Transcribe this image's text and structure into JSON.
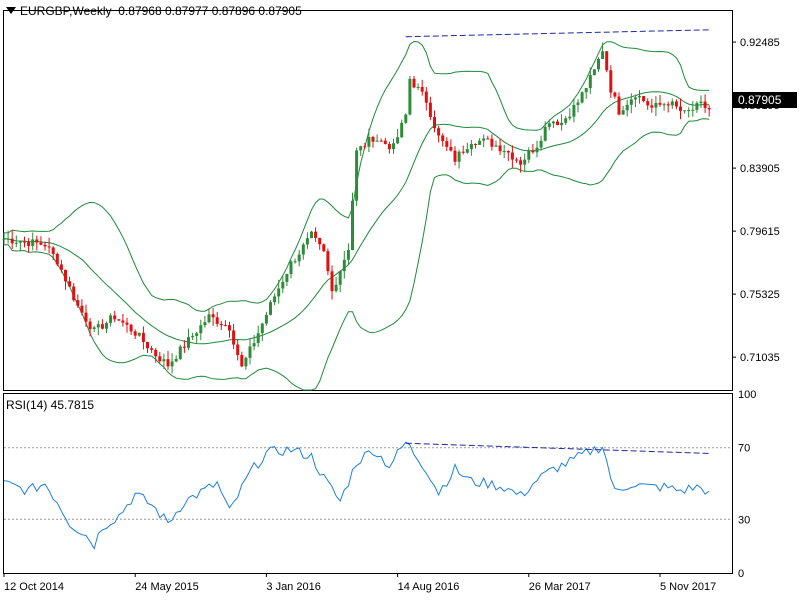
{
  "header": {
    "symbol": "EURGBP,Weekly",
    "ohlc": "0.87968 0.87977 0.87896 0.87905"
  },
  "rsi_header": {
    "label": "RSI(14) 45.7815"
  },
  "current_price_label": "0.87905",
  "colors": {
    "bull": "#2e8b3a",
    "bear": "#e01010",
    "bands": "#1f8a3a",
    "trendline": "#1d2a9e",
    "rsi_line": "#1e7fd8",
    "price_tag_bg": "#000000",
    "grid_dash": "#9a9a9a"
  },
  "chart_data": [
    {
      "type": "candlestick",
      "title": "EURGBP,Weekly",
      "ylim": [
        0.688,
        0.946
      ],
      "y_ticks": [
        "0.92485",
        "0.88195",
        "0.83905",
        "0.79615",
        "0.75325",
        "0.71035"
      ],
      "y_tick_values": [
        0.92485,
        0.88195,
        0.83905,
        0.79615,
        0.75325,
        0.71035
      ],
      "x_tick_labels": [
        "12 Oct 2014",
        "24 May 2015",
        "3 Jan 2016",
        "14 Aug 2016",
        "26 Mar 2017",
        "5 Nov 2017"
      ],
      "x_tick_bars": [
        0,
        32,
        64,
        96,
        128,
        160
      ],
      "bars_count": 173,
      "close_path": [
        [
          0,
          0.791
        ],
        [
          10,
          0.787
        ],
        [
          13,
          0.776
        ],
        [
          18,
          0.745
        ],
        [
          22,
          0.728
        ],
        [
          27,
          0.738
        ],
        [
          32,
          0.727
        ],
        [
          37,
          0.712
        ],
        [
          40,
          0.705
        ],
        [
          46,
          0.725
        ],
        [
          50,
          0.738
        ],
        [
          55,
          0.731
        ],
        [
          58,
          0.703
        ],
        [
          62,
          0.727
        ],
        [
          66,
          0.752
        ],
        [
          70,
          0.774
        ],
        [
          75,
          0.793
        ],
        [
          78,
          0.781
        ],
        [
          80,
          0.755
        ],
        [
          84,
          0.785
        ],
        [
          86,
          0.85
        ],
        [
          90,
          0.86
        ],
        [
          95,
          0.853
        ],
        [
          98,
          0.875
        ],
        [
          99,
          0.9
        ],
        [
          103,
          0.885
        ],
        [
          106,
          0.86
        ],
        [
          110,
          0.845
        ],
        [
          114,
          0.858
        ],
        [
          118,
          0.857
        ],
        [
          122,
          0.852
        ],
        [
          126,
          0.843
        ],
        [
          130,
          0.855
        ],
        [
          133,
          0.872
        ],
        [
          136,
          0.87
        ],
        [
          140,
          0.884
        ],
        [
          144,
          0.905
        ],
        [
          146,
          0.92
        ],
        [
          148,
          0.893
        ],
        [
          150,
          0.878
        ],
        [
          154,
          0.89
        ],
        [
          158,
          0.88
        ],
        [
          162,
          0.884
        ],
        [
          166,
          0.876
        ],
        [
          170,
          0.882
        ],
        [
          172,
          0.879
        ]
      ],
      "trendline": {
        "from": [
          98,
          0.9285
        ],
        "to": [
          172,
          0.9332
        ]
      },
      "current_price": 0.87905
    },
    {
      "type": "line",
      "title": "RSI(14) 45.7815",
      "ylim": [
        0,
        100
      ],
      "y_ticks": [
        "100",
        "70",
        "30",
        "0"
      ],
      "y_tick_values": [
        100,
        70,
        30,
        0
      ],
      "levels": [
        70,
        30
      ],
      "last_value": 45.7815,
      "rsi_path": [
        [
          0,
          50
        ],
        [
          6,
          46
        ],
        [
          10,
          50
        ],
        [
          13,
          40
        ],
        [
          16,
          28
        ],
        [
          20,
          21
        ],
        [
          22,
          16
        ],
        [
          24,
          26
        ],
        [
          28,
          32
        ],
        [
          32,
          44
        ],
        [
          36,
          38
        ],
        [
          40,
          28
        ],
        [
          44,
          40
        ],
        [
          48,
          45
        ],
        [
          52,
          50
        ],
        [
          55,
          34
        ],
        [
          60,
          56
        ],
        [
          64,
          67
        ],
        [
          70,
          69
        ],
        [
          75,
          65
        ],
        [
          78,
          53
        ],
        [
          82,
          40
        ],
        [
          86,
          62
        ],
        [
          90,
          69
        ],
        [
          94,
          60
        ],
        [
          98,
          73
        ],
        [
          103,
          58
        ],
        [
          106,
          45
        ],
        [
          110,
          58
        ],
        [
          114,
          51
        ],
        [
          118,
          50
        ],
        [
          122,
          48
        ],
        [
          126,
          43
        ],
        [
          130,
          52
        ],
        [
          134,
          58
        ],
        [
          138,
          62
        ],
        [
          142,
          67
        ],
        [
          146,
          71
        ],
        [
          149,
          45
        ],
        [
          153,
          50
        ],
        [
          157,
          48
        ],
        [
          161,
          48
        ],
        [
          165,
          46
        ],
        [
          169,
          48
        ],
        [
          172,
          45.78
        ]
      ],
      "trendline": {
        "from": [
          98,
          72.5
        ],
        "to": [
          172,
          66.8
        ]
      }
    }
  ]
}
